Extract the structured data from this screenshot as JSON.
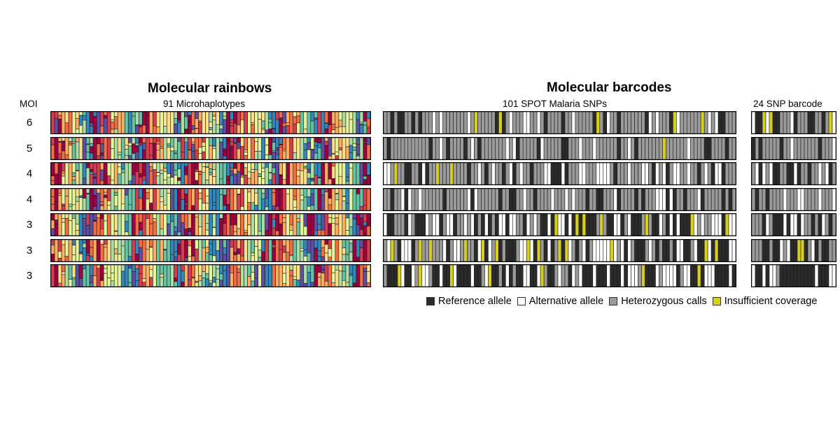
{
  "titles": {
    "rainbows": "Molecular rainbows",
    "barcodes": "Molecular barcodes"
  },
  "subtitles": {
    "moi_header": "MOI",
    "microhaplotypes": "91 Microhaplotypes",
    "spot_snps": "101 SPOT Malaria SNPs",
    "snp24": "24 SNP barcode"
  },
  "samples": [
    {
      "moi": "6"
    },
    {
      "moi": "5"
    },
    {
      "moi": "4"
    },
    {
      "moi": "4"
    },
    {
      "moi": "3"
    },
    {
      "moi": "3"
    },
    {
      "moi": "3"
    }
  ],
  "panels": {
    "microhaplotypes": {
      "count": 91
    },
    "spot_snps": {
      "count": 101
    },
    "snp24": {
      "count": 24
    }
  },
  "legend": [
    {
      "label": "Reference allele",
      "color": "#2b2b2b"
    },
    {
      "label": "Alternative allele",
      "color": "#ffffff"
    },
    {
      "label": "Heterozygous calls",
      "color": "#9a9a9a"
    },
    {
      "label": "Insufficient coverage",
      "color": "#d8cf1a"
    }
  ],
  "rainbow_palette": [
    "#9e0142",
    "#d53e4f",
    "#f46d43",
    "#fdae61",
    "#fee08b",
    "#e6f598",
    "#abdda4",
    "#66c2a5",
    "#3288bd",
    "#5e4fa2"
  ]
}
